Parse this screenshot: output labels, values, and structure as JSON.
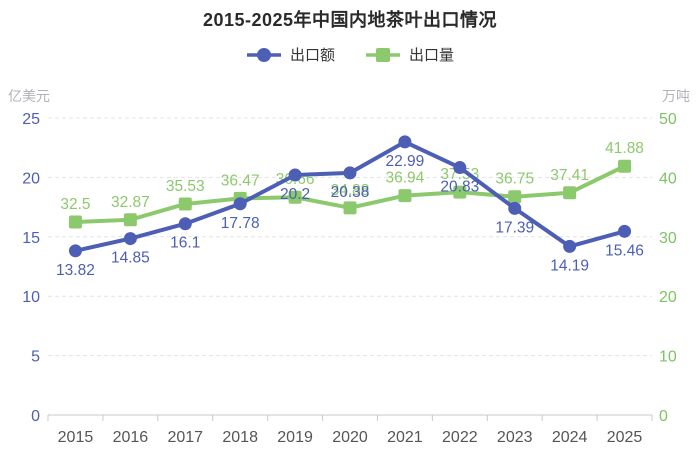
{
  "chart_data": {
    "type": "line",
    "title": "2015-2025年中国内地茶叶出口情况",
    "categories": [
      "2015",
      "2016",
      "2017",
      "2018",
      "2019",
      "2020",
      "2021",
      "2022",
      "2023",
      "2024",
      "2025"
    ],
    "series": [
      {
        "name": "出口额",
        "axis": "left",
        "marker": "circle",
        "color": "#4d5eb5",
        "values": [
          13.82,
          14.85,
          16.1,
          17.78,
          20.2,
          20.38,
          22.99,
          20.83,
          17.39,
          14.19,
          15.46
        ]
      },
      {
        "name": "出口量",
        "axis": "right",
        "marker": "square",
        "color": "#8cc96d",
        "values": [
          32.5,
          32.87,
          35.53,
          36.47,
          36.66,
          34.88,
          36.94,
          37.53,
          36.75,
          37.41,
          41.88
        ]
      }
    ],
    "y_left": {
      "label": "亿美元",
      "min": 0,
      "max": 25,
      "ticks": [
        0,
        5,
        10,
        15,
        20,
        25
      ],
      "color": "#4d5eb5"
    },
    "y_right": {
      "label": "万吨",
      "min": 0,
      "max": 50,
      "ticks": [
        0,
        10,
        20,
        30,
        40,
        50
      ],
      "color": "#7cc464"
    },
    "x_axis": {
      "label_color": "#555555",
      "line_color": "#c9c9c9"
    },
    "grid": {
      "style": "dashed",
      "color": "#e4e4e4"
    },
    "legend_position": "top"
  }
}
